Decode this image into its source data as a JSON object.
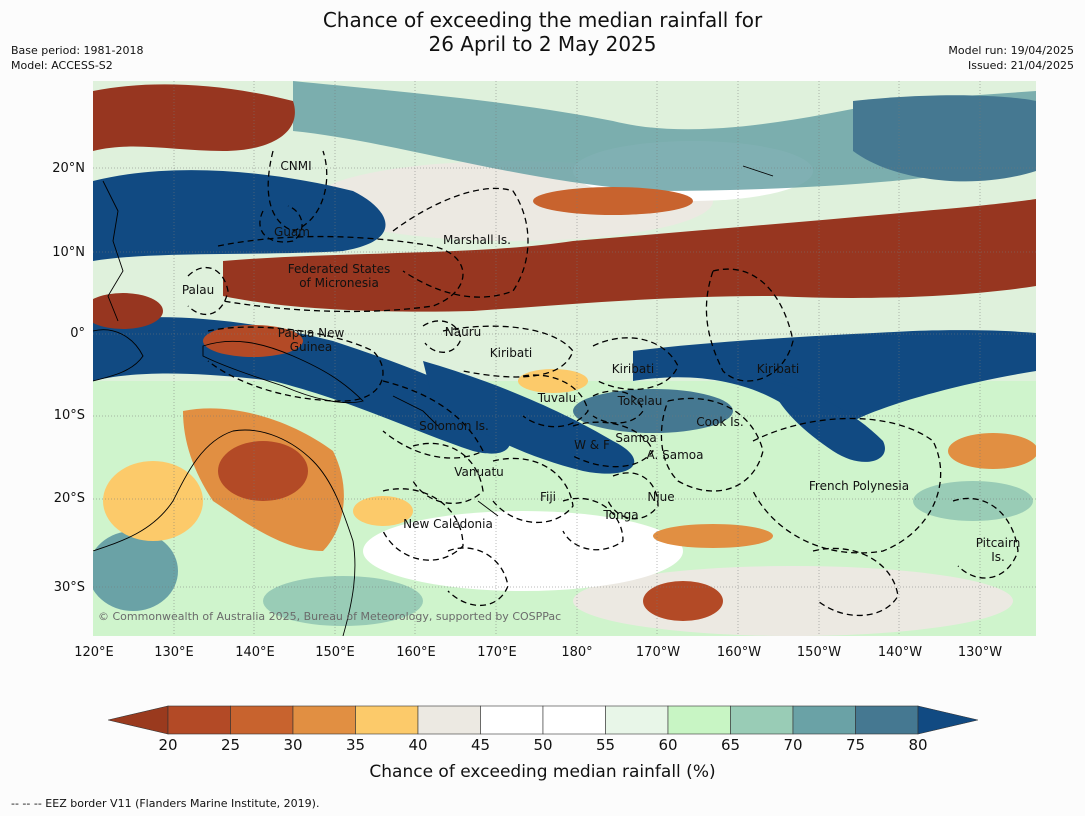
{
  "title_line1": "Chance of exceeding the median rainfall for",
  "title_line2": "26 April to 2 May 2025",
  "meta_left": [
    "Base period: 1981-2018",
    "Model: ACCESS-S2"
  ],
  "meta_right": [
    "Model run: 19/04/2025",
    "Issued: 21/04/2025"
  ],
  "lat_labels": [
    "20°N",
    "10°N",
    "0°",
    "10°S",
    "20°S",
    "30°S"
  ],
  "lon_labels": [
    "120°E",
    "130°E",
    "140°E",
    "150°E",
    "160°E",
    "170°E",
    "180°",
    "170°W",
    "160°W",
    "150°W",
    "140°W",
    "130°W"
  ],
  "regions": [
    {
      "label": "CNMI"
    },
    {
      "label": "Guam"
    },
    {
      "label": "Marshall Is."
    },
    {
      "label": "Federated States\nof Micronesia"
    },
    {
      "label": "Palau"
    },
    {
      "label": "Nauru"
    },
    {
      "label": "Papua New\nGuinea"
    },
    {
      "label": "Kiribati"
    },
    {
      "label": "Kiribati"
    },
    {
      "label": "Kiribati"
    },
    {
      "label": "Tuvalu"
    },
    {
      "label": "Tokelau"
    },
    {
      "label": "Solomon Is."
    },
    {
      "label": "Cook Is."
    },
    {
      "label": "W & F"
    },
    {
      "label": "Samoa"
    },
    {
      "label": "A. Samoa"
    },
    {
      "label": "Vanuatu"
    },
    {
      "label": "Fiji"
    },
    {
      "label": "Niue"
    },
    {
      "label": "French Polynesia"
    },
    {
      "label": "Tonga"
    },
    {
      "label": "New Caledonia"
    },
    {
      "label": "Pitcairn\nIs."
    }
  ],
  "copyright": "© Commonwealth of Australia 2025, Bureau of Meteorology, supported by COSPPac",
  "colorbar": {
    "ticks": [
      "20",
      "25",
      "30",
      "35",
      "40",
      "45",
      "50",
      "55",
      "60",
      "65",
      "70",
      "75",
      "80"
    ],
    "colors": [
      "#9a3a1e",
      "#b34a26",
      "#c8632e",
      "#e18f42",
      "#fcca6a",
      "#ece9e2",
      "#ffffff",
      "#ffffff",
      "#e8f6e8",
      "#c8f5c4",
      "#99ccb6",
      "#6aa2a6",
      "#457891",
      "#114a82"
    ],
    "title": "Chance of exceeding median rainfall (%)"
  },
  "footnote": "--  --  -- EEZ border V11 (Flanders Marine Institute, 2019).",
  "map_colors": {
    "ocean_base": "#dff1dc",
    "wet_strong": "#114a82",
    "wet_mid": "#457891",
    "wet_light": "#99ccb6",
    "dry_strong": "#973620",
    "dry_mid": "#c8632e",
    "dry_light": "#fcca6a",
    "neutral": "#ece9e2"
  }
}
